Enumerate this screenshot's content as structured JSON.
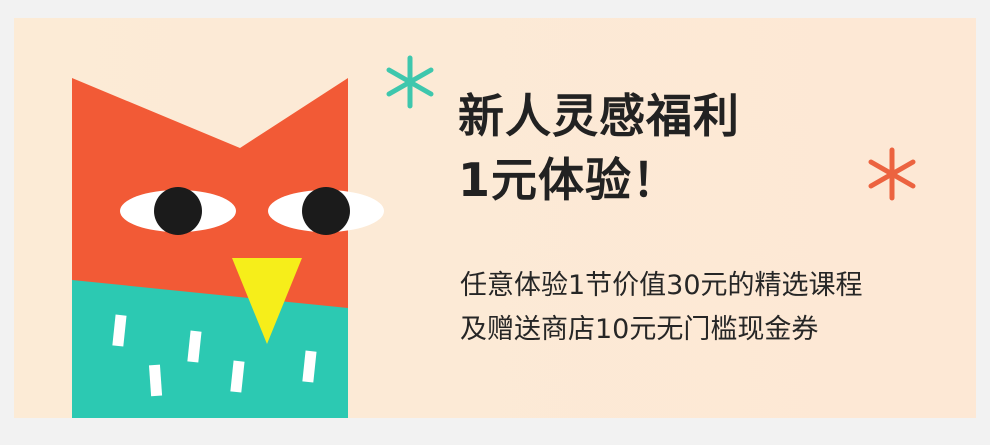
{
  "banner": {
    "headline": {
      "line1": "新人灵感福利",
      "line2": "1元体验！"
    },
    "description": {
      "line1": "任意体验1节价值30元的精选课程",
      "line2": "及赠送商店10元无门槛现金券"
    },
    "icons": {
      "mascot": "owl-mascot-icon",
      "sparkle_teal": "sparkle-icon",
      "sparkle_orange": "sparkle-icon"
    }
  },
  "colors": {
    "background": "#fcebd6",
    "owl_head": "#f25a36",
    "owl_body": "#2cc9b2",
    "owl_beak": "#f6ee1a",
    "sparkle_teal": "#3ec7ad",
    "sparkle_orange": "#ec6340",
    "text": "#222222"
  }
}
